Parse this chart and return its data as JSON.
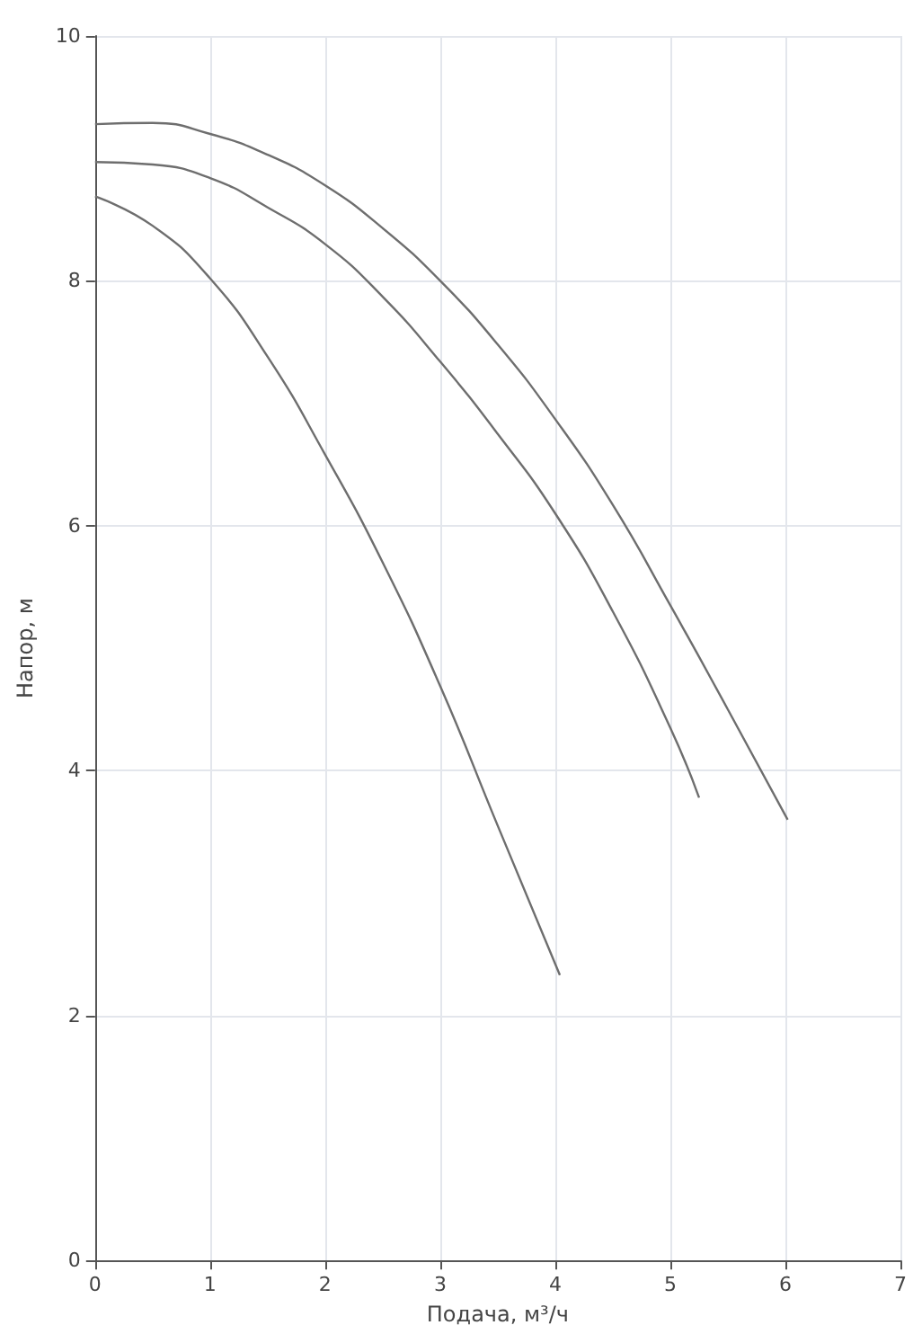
{
  "chart_data": {
    "type": "line",
    "xlabel": "Подача, м³/ч",
    "ylabel": "Напор, м",
    "xlim": [
      0,
      7
    ],
    "xticks": [
      0,
      1,
      2,
      3,
      4,
      5,
      6,
      7
    ],
    "ylim": [
      0,
      10
    ],
    "yticks": [
      0,
      2,
      4,
      6,
      8,
      10
    ],
    "grid": true,
    "marker": "none",
    "line_style": "solid",
    "series": [
      {
        "color": "#6e6e6e",
        "x": [
          0,
          0.5,
          1,
          1.5,
          2,
          2.5,
          3,
          3.5,
          4,
          4.5,
          5,
          5.5,
          6.02
        ],
        "values": [
          9.28,
          9.29,
          9.2,
          9.03,
          8.78,
          8.43,
          8.0,
          7.48,
          6.87,
          6.17,
          5.35,
          4.5,
          3.6
        ]
      },
      {
        "color": "#6e6e6e",
        "x": [
          0,
          0.5,
          1,
          1.5,
          2,
          2.5,
          3,
          3.5,
          4,
          4.5,
          5,
          5.25
        ],
        "values": [
          8.97,
          8.95,
          8.84,
          8.6,
          8.3,
          7.87,
          7.34,
          6.75,
          6.1,
          5.3,
          4.35,
          3.78
        ]
      },
      {
        "color": "#6e6e6e",
        "x": [
          0,
          0.5,
          1,
          1.5,
          2,
          2.5,
          3,
          3.5,
          4.04
        ],
        "values": [
          8.69,
          8.45,
          8.02,
          7.38,
          6.58,
          5.7,
          4.69,
          3.55,
          2.33
        ]
      }
    ]
  }
}
